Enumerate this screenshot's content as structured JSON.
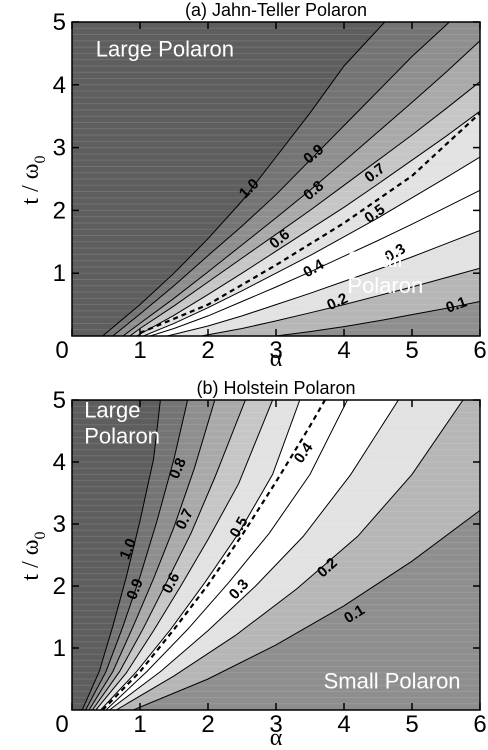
{
  "chart_data": [
    {
      "type": "contour",
      "title": "(a) Jahn-Teller Polaron",
      "xlabel": "α",
      "ylabel": "t / ω",
      "ylabel_sub": "0",
      "xlim": [
        0,
        6
      ],
      "ylim": [
        0,
        5
      ],
      "xticks": [
        "0",
        "1",
        "2",
        "3",
        "4",
        "5",
        "6"
      ],
      "yticks": [
        "1",
        "2",
        "3",
        "4",
        "5"
      ],
      "levels": [
        1.0,
        0.9,
        0.8,
        0.7,
        0.6,
        0.5,
        0.4,
        0.3,
        0.2,
        0.1
      ],
      "fill_colors": [
        "#5e5e5e",
        "#747474",
        "#8e8e8e",
        "#a9a9a9",
        "#c6c6c6",
        "#e2e2e2",
        "#ffffff",
        "#ffffff",
        "#e2e2e2",
        "#b6b6b6",
        "#8e8e8e",
        "#747474",
        "#5e5e5e"
      ],
      "dashed_line": {
        "x": [
          1.0,
          2.0,
          3.0,
          4.0,
          5.0,
          6.0
        ],
        "y": [
          0.05,
          0.5,
          1.13,
          1.8,
          2.55,
          3.55
        ]
      },
      "contours": [
        {
          "level": "1.0",
          "x": [
            0.45,
            1.0,
            1.5,
            2.0,
            2.5,
            3.0,
            3.5,
            4.0,
            4.6
          ],
          "y": [
            0.0,
            0.5,
            1.0,
            1.55,
            2.15,
            2.85,
            3.55,
            4.3,
            5.0
          ]
        },
        {
          "level": "0.9",
          "x": [
            0.6,
            1.0,
            1.5,
            2.0,
            2.5,
            3.0,
            3.5,
            4.0,
            4.5,
            5.0,
            5.55
          ],
          "y": [
            0.0,
            0.35,
            0.8,
            1.28,
            1.75,
            2.25,
            2.8,
            3.35,
            3.9,
            4.45,
            5.0
          ]
        },
        {
          "level": "0.8",
          "x": [
            0.75,
            1.0,
            1.5,
            2.0,
            2.5,
            3.0,
            3.5,
            4.0,
            4.5,
            5.0,
            5.5,
            6.0
          ],
          "y": [
            0.0,
            0.2,
            0.6,
            1.02,
            1.45,
            1.88,
            2.32,
            2.78,
            3.25,
            3.72,
            4.2,
            4.7
          ]
        },
        {
          "level": "0.7",
          "x": [
            0.85,
            1.0,
            1.5,
            2.0,
            2.5,
            3.0,
            3.5,
            4.0,
            4.5,
            5.0,
            5.5,
            6.0
          ],
          "y": [
            0.0,
            0.12,
            0.48,
            0.86,
            1.24,
            1.62,
            2.0,
            2.4,
            2.8,
            3.2,
            3.62,
            4.05
          ]
        },
        {
          "level": "0.6",
          "x": [
            0.95,
            1.5,
            2.0,
            2.5,
            3.0,
            3.5,
            4.0,
            4.5,
            5.0,
            5.5,
            6.0
          ],
          "y": [
            0.0,
            0.33,
            0.66,
            1.0,
            1.35,
            1.7,
            2.05,
            2.42,
            2.8,
            3.18,
            3.58
          ]
        },
        {
          "level": "0.5",
          "x": [
            1.05,
            1.5,
            2.0,
            2.5,
            3.0,
            3.5,
            4.0,
            4.5,
            5.0,
            5.5,
            6.0
          ],
          "y": [
            0.0,
            0.2,
            0.45,
            0.72,
            1.0,
            1.28,
            1.58,
            1.88,
            2.2,
            2.52,
            2.85
          ]
        },
        {
          "level": "0.4",
          "x": [
            1.15,
            1.5,
            2.0,
            2.5,
            3.0,
            3.5,
            4.0,
            4.5,
            5.0,
            5.5,
            6.0
          ],
          "y": [
            0.0,
            0.12,
            0.32,
            0.55,
            0.78,
            1.02,
            1.27,
            1.52,
            1.78,
            2.05,
            2.32
          ]
        },
        {
          "level": "0.3",
          "x": [
            1.4,
            2.0,
            2.5,
            3.0,
            3.5,
            4.0,
            4.5,
            5.0,
            5.5,
            6.0
          ],
          "y": [
            0.0,
            0.16,
            0.32,
            0.5,
            0.68,
            0.87,
            1.06,
            1.26,
            1.47,
            1.68
          ]
        },
        {
          "level": "0.2",
          "x": [
            1.9,
            2.5,
            3.0,
            3.5,
            4.0,
            4.5,
            5.0,
            5.5,
            6.0
          ],
          "y": [
            0.0,
            0.12,
            0.24,
            0.37,
            0.5,
            0.64,
            0.78,
            0.93,
            1.08
          ]
        },
        {
          "level": "0.1",
          "x": [
            3.0,
            3.5,
            4.0,
            4.5,
            5.0,
            5.5,
            6.0
          ],
          "y": [
            0.0,
            0.07,
            0.15,
            0.24,
            0.34,
            0.44,
            0.55
          ]
        }
      ],
      "contour_labels": [
        {
          "text": "1.0",
          "x": 2.6,
          "y": 2.35,
          "rot": -45
        },
        {
          "text": "0.9",
          "x": 3.55,
          "y": 2.9,
          "rot": -40
        },
        {
          "text": "0.8",
          "x": 3.55,
          "y": 2.32,
          "rot": -40
        },
        {
          "text": "0.7",
          "x": 4.45,
          "y": 2.6,
          "rot": -38
        },
        {
          "text": "0.6",
          "x": 3.05,
          "y": 1.55,
          "rot": -40
        },
        {
          "text": "0.5",
          "x": 4.45,
          "y": 1.95,
          "rot": -35
        },
        {
          "text": "0.4",
          "x": 3.55,
          "y": 1.08,
          "rot": -30
        },
        {
          "text": "0.3",
          "x": 4.75,
          "y": 1.33,
          "rot": -30
        },
        {
          "text": "0.2",
          "x": 3.9,
          "y": 0.55,
          "rot": -25
        },
        {
          "text": "0.1",
          "x": 5.65,
          "y": 0.5,
          "rot": -20
        }
      ],
      "annotations": [
        {
          "lines": [
            "Large Polaron"
          ],
          "x": 0.35,
          "y": 4.45
        },
        {
          "lines": [
            "Small",
            "Polaron"
          ],
          "x": 4.05,
          "y": 1.1
        }
      ]
    },
    {
      "type": "contour",
      "title": "(b) Holstein Polaron",
      "xlabel": "α",
      "ylabel": "t / ω",
      "ylabel_sub": "0",
      "xlim": [
        0,
        6
      ],
      "ylim": [
        0,
        5
      ],
      "xticks": [
        "0",
        "1",
        "2",
        "3",
        "4",
        "5",
        "6"
      ],
      "yticks": [
        "1",
        "2",
        "3",
        "4",
        "5"
      ],
      "levels": [
        1.0,
        0.9,
        0.8,
        0.7,
        0.6,
        0.5,
        0.4,
        0.3,
        0.2,
        0.1
      ],
      "fill_colors": [
        "#5e5e5e",
        "#747474",
        "#8e8e8e",
        "#a9a9a9",
        "#c6c6c6",
        "#e2e2e2",
        "#ffffff",
        "#ffffff",
        "#e2e2e2",
        "#b6b6b6",
        "#8e8e8e",
        "#747474",
        "#5e5e5e"
      ],
      "dashed_line": {
        "x": [
          0.45,
          1.0,
          1.5,
          2.0,
          2.5,
          3.0,
          3.5,
          3.72
        ],
        "y": [
          0.0,
          0.62,
          1.3,
          2.02,
          2.82,
          3.68,
          4.58,
          5.0
        ]
      },
      "contours": [
        {
          "level": "1.0",
          "x": [
            0.15,
            0.4,
            0.6,
            0.8,
            1.0,
            1.2,
            1.3
          ],
          "y": [
            0.0,
            0.62,
            1.35,
            2.15,
            3.05,
            4.05,
            5.0
          ]
        },
        {
          "level": "0.9",
          "x": [
            0.2,
            0.5,
            0.75,
            1.0,
            1.25,
            1.5,
            1.7
          ],
          "y": [
            0.0,
            0.62,
            1.35,
            2.15,
            3.05,
            4.05,
            5.0
          ]
        },
        {
          "level": "0.8",
          "x": [
            0.25,
            0.6,
            0.9,
            1.2,
            1.5,
            1.8,
            2.1
          ],
          "y": [
            0.0,
            0.62,
            1.35,
            2.12,
            2.95,
            3.9,
            5.0
          ]
        },
        {
          "level": "0.7",
          "x": [
            0.3,
            0.7,
            1.05,
            1.4,
            1.75,
            2.1,
            2.55
          ],
          "y": [
            0.0,
            0.62,
            1.32,
            2.08,
            2.85,
            3.75,
            5.0
          ]
        },
        {
          "level": "0.6",
          "x": [
            0.35,
            0.8,
            1.2,
            1.6,
            2.0,
            2.45,
            2.95
          ],
          "y": [
            0.0,
            0.6,
            1.28,
            2.0,
            2.75,
            3.65,
            5.0
          ]
        },
        {
          "level": "0.5",
          "x": [
            0.42,
            0.95,
            1.45,
            1.95,
            2.45,
            2.95,
            3.35
          ],
          "y": [
            0.0,
            0.62,
            1.3,
            2.05,
            2.85,
            3.8,
            5.0
          ]
        },
        {
          "level": "0.4",
          "x": [
            0.5,
            1.1,
            1.7,
            2.3,
            2.9,
            3.5,
            4.05
          ],
          "y": [
            0.0,
            0.62,
            1.3,
            2.05,
            2.85,
            3.8,
            5.0
          ]
        },
        {
          "level": "0.3",
          "x": [
            0.55,
            1.3,
            2.0,
            2.7,
            3.4,
            4.1,
            4.8
          ],
          "y": [
            0.0,
            0.62,
            1.28,
            2.0,
            2.8,
            3.8,
            5.0
          ]
        },
        {
          "level": "0.2",
          "x": [
            0.65,
            1.5,
            2.4,
            3.3,
            4.2,
            5.0,
            5.75
          ],
          "y": [
            0.0,
            0.55,
            1.2,
            1.95,
            2.8,
            3.8,
            5.0
          ]
        },
        {
          "level": "0.1",
          "x": [
            0.9,
            2.0,
            3.0,
            4.0,
            5.0,
            6.0
          ],
          "y": [
            0.0,
            0.5,
            1.05,
            1.68,
            2.4,
            3.22
          ]
        }
      ],
      "contour_labels": [
        {
          "text": "1.0",
          "x": 0.82,
          "y": 2.6,
          "rot": -68
        },
        {
          "text": "0.9",
          "x": 0.92,
          "y": 1.95,
          "rot": -68
        },
        {
          "text": "0.8",
          "x": 1.55,
          "y": 3.9,
          "rot": -66
        },
        {
          "text": "0.7",
          "x": 1.65,
          "y": 3.08,
          "rot": -64
        },
        {
          "text": "0.6",
          "x": 1.45,
          "y": 2.05,
          "rot": -62
        },
        {
          "text": "0.5",
          "x": 2.45,
          "y": 2.95,
          "rot": -60
        },
        {
          "text": "0.4",
          "x": 3.4,
          "y": 4.15,
          "rot": -55
        },
        {
          "text": "0.3",
          "x": 2.45,
          "y": 1.95,
          "rot": -48
        },
        {
          "text": "0.2",
          "x": 3.75,
          "y": 2.3,
          "rot": -42
        },
        {
          "text": "0.1",
          "x": 4.15,
          "y": 1.55,
          "rot": -32
        }
      ],
      "annotations": [
        {
          "lines": [
            "Large",
            "Polaron"
          ],
          "x": 0.18,
          "y": 4.72
        },
        {
          "lines": [
            "Small Polaron"
          ],
          "x": 3.7,
          "y": 0.35
        }
      ]
    }
  ]
}
